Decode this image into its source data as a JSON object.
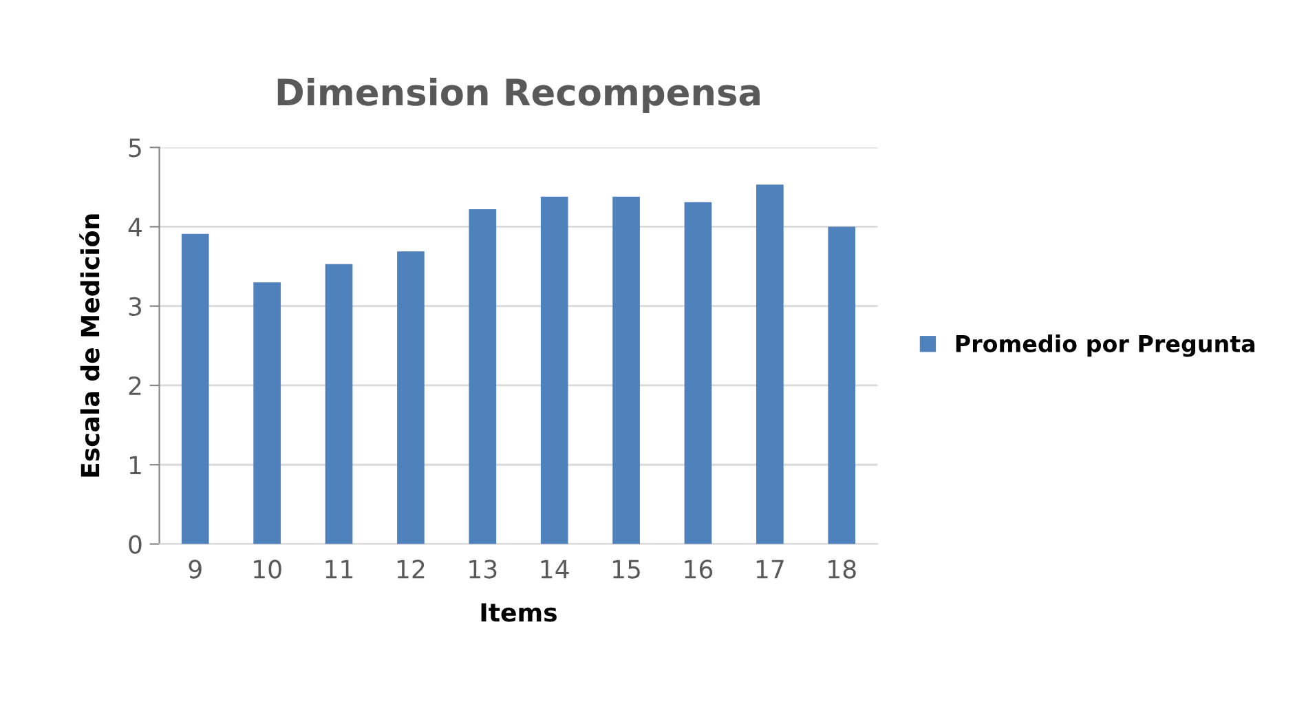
{
  "chart_data": {
    "type": "bar",
    "title": "Dimension Recompensa",
    "xlabel": "Items",
    "ylabel": "Escala de Medición",
    "categories": [
      "9",
      "10",
      "11",
      "12",
      "13",
      "14",
      "15",
      "16",
      "17",
      "18"
    ],
    "series": [
      {
        "name": "Promedio por Pregunta",
        "color": "#4f81bd",
        "values": [
          3.91,
          3.3,
          3.53,
          3.69,
          4.22,
          4.38,
          4.38,
          4.31,
          4.53,
          4.0
        ]
      }
    ],
    "ylim": [
      0,
      5
    ],
    "yticks": [
      0,
      1,
      2,
      3,
      4,
      5
    ],
    "grid": "y",
    "legend": "right"
  }
}
